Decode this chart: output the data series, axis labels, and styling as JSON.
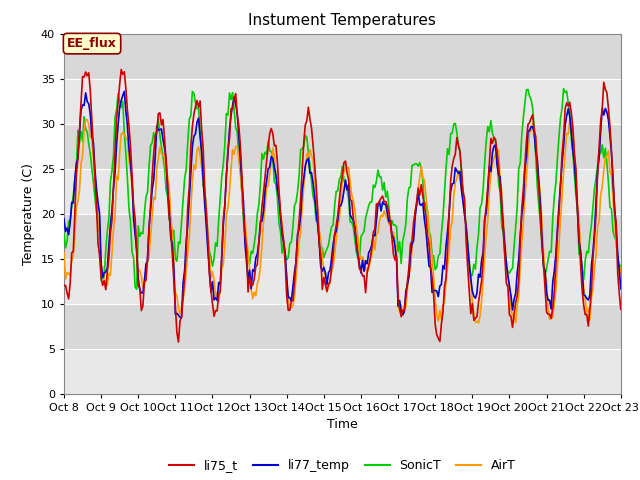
{
  "title": "Instument Temperatures",
  "xlabel": "Time",
  "ylabel": "Temperature (C)",
  "ylim": [
    0,
    40
  ],
  "xlim": [
    0,
    360
  ],
  "xtick_labels": [
    "Oct 8",
    "Oct 9",
    "Oct 10",
    "Oct 11",
    "Oct 12",
    "Oct 13",
    "Oct 14",
    "Oct 15",
    "Oct 16",
    "Oct 17",
    "Oct 18",
    "Oct 19",
    "Oct 20",
    "Oct 21",
    "Oct 22",
    "Oct 23"
  ],
  "xtick_positions": [
    0,
    24,
    48,
    72,
    96,
    120,
    144,
    168,
    192,
    216,
    240,
    264,
    288,
    312,
    336,
    360
  ],
  "ytick_positions": [
    0,
    5,
    10,
    15,
    20,
    25,
    30,
    35,
    40
  ],
  "series_colors": {
    "li75_t": "#cc0000",
    "li77_temp": "#0000cc",
    "SonicT": "#00cc00",
    "AirT": "#ff9900"
  },
  "series_linewidth": 1.2,
  "plot_bg_light": "#e8e8e8",
  "plot_bg_dark": "#d8d8d8",
  "annotation_text": "EE_flux",
  "title_fontsize": 11,
  "axis_fontsize": 9,
  "tick_fontsize": 8,
  "legend_fontsize": 9,
  "band_colors": [
    "#e8e8e8",
    "#d8d8d8"
  ]
}
